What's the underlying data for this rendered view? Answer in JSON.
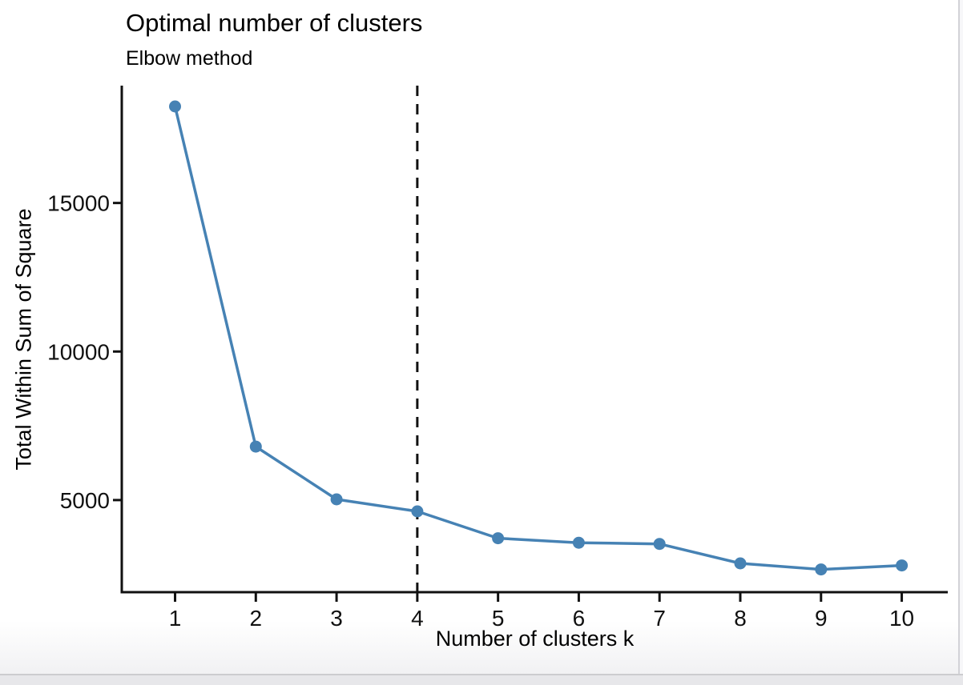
{
  "chart_data": {
    "type": "line",
    "title": "Optimal number of clusters",
    "subtitle": "Elbow method",
    "xlabel": "Number of clusters k",
    "ylabel": "Total Within Sum of Square",
    "x": [
      1,
      2,
      3,
      4,
      5,
      6,
      7,
      8,
      9,
      10
    ],
    "values": [
      18250,
      6800,
      5025,
      4620,
      3715,
      3565,
      3525,
      2870,
      2665,
      2800
    ],
    "xticks": [
      1,
      2,
      3,
      4,
      5,
      6,
      7,
      8,
      9,
      10
    ],
    "yticks": [
      5000,
      10000,
      15000
    ],
    "xlim": [
      0.34,
      10.57
    ],
    "ylim": [
      1900,
      18950
    ],
    "vline_x": 4,
    "vline_style": "dashed",
    "grid": false,
    "legend": "none",
    "line_color": "#4682b4",
    "point_color": "#4682b4",
    "vline_color": "#111111",
    "axis_color": "#111111",
    "text_color": "#111111"
  }
}
